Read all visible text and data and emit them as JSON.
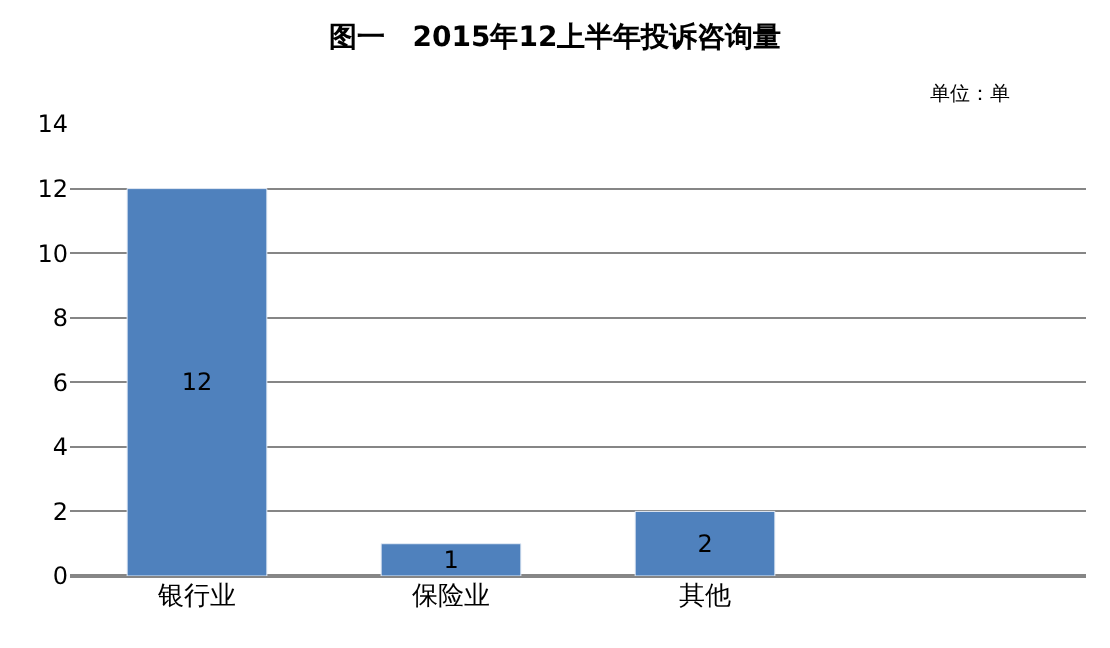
{
  "chart_data": {
    "type": "bar",
    "title": "图一　2015年12上半年投诉咨询量",
    "annotations": [
      "单位：单"
    ],
    "categories": [
      "银行业",
      "保险业",
      "其他",
      null
    ],
    "values": [
      12,
      1,
      2,
      null
    ],
    "color": "#4f81bd",
    "ylim": [
      0,
      14
    ],
    "yticks": [
      0,
      2,
      4,
      6,
      8,
      10,
      12,
      14
    ],
    "grid": "y",
    "data_labels": true,
    "legend": false
  }
}
